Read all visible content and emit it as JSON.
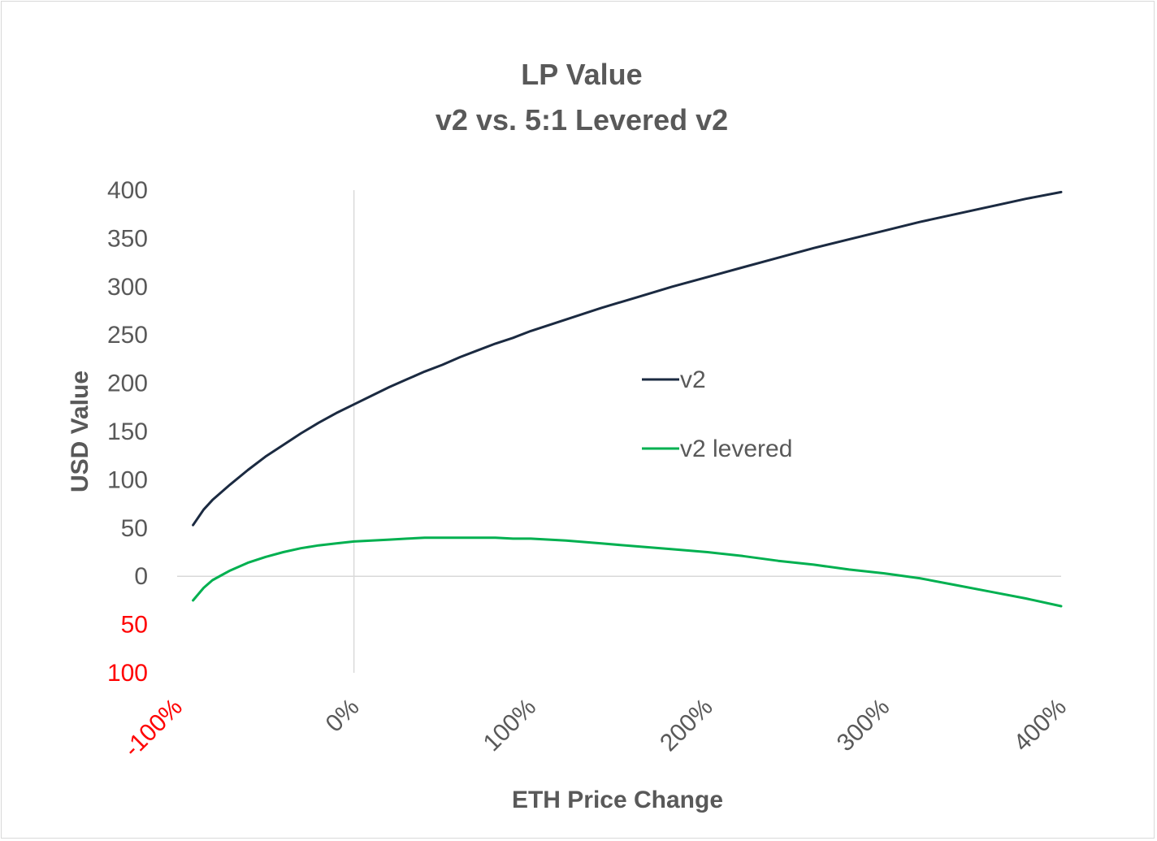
{
  "chart_data": {
    "type": "line",
    "title": [
      "LP Value",
      "v2 vs. 5:1 Levered v2"
    ],
    "xlabel": "ETH Price Change",
    "ylabel": "USD Value",
    "xlim": [
      -100,
      400
    ],
    "ylim": [
      -100,
      400
    ],
    "x_ticks": [
      {
        "value": -100,
        "label": "-100%",
        "color": "#ff0000"
      },
      {
        "value": 0,
        "label": "0%",
        "color": "#595959"
      },
      {
        "value": 100,
        "label": "100%",
        "color": "#595959"
      },
      {
        "value": 200,
        "label": "200%",
        "color": "#595959"
      },
      {
        "value": 300,
        "label": "300%",
        "color": "#595959"
      },
      {
        "value": 400,
        "label": "400%",
        "color": "#595959"
      }
    ],
    "y_ticks": [
      {
        "value": 400,
        "label": "400",
        "color": "#595959"
      },
      {
        "value": 350,
        "label": "350",
        "color": "#595959"
      },
      {
        "value": 300,
        "label": "300",
        "color": "#595959"
      },
      {
        "value": 250,
        "label": "250",
        "color": "#595959"
      },
      {
        "value": 200,
        "label": "200",
        "color": "#595959"
      },
      {
        "value": 150,
        "label": "150",
        "color": "#595959"
      },
      {
        "value": 100,
        "label": "100",
        "color": "#595959"
      },
      {
        "value": 50,
        "label": "50",
        "color": "#595959"
      },
      {
        "value": 0,
        "label": "0",
        "color": "#595959"
      },
      {
        "value": -50,
        "label": "50",
        "color": "#ff0000"
      },
      {
        "value": -100,
        "label": "100",
        "color": "#ff0000"
      }
    ],
    "grid": false,
    "legend_position": "center-right",
    "series": [
      {
        "name": "v2",
        "color": "#1b2a41",
        "x": [
          -91,
          -85,
          -80,
          -75,
          -70,
          -60,
          -50,
          -40,
          -30,
          -20,
          -10,
          0,
          10,
          20,
          30,
          40,
          50,
          60,
          70,
          80,
          90,
          100,
          120,
          140,
          160,
          180,
          200,
          220,
          240,
          260,
          280,
          300,
          320,
          340,
          360,
          380,
          400
        ],
        "values": [
          53,
          69,
          79,
          87,
          95,
          110,
          124,
          136,
          148,
          159,
          169,
          178,
          187,
          196,
          204,
          212,
          219,
          227,
          234,
          241,
          247,
          254,
          266,
          278,
          289,
          300,
          310,
          320,
          330,
          340,
          349,
          358,
          367,
          375,
          383,
          391,
          398
        ]
      },
      {
        "name": "v2 levered",
        "color": "#00b050",
        "x": [
          -91,
          -85,
          -80,
          -75,
          -70,
          -60,
          -50,
          -40,
          -30,
          -20,
          -10,
          0,
          10,
          20,
          30,
          40,
          50,
          60,
          70,
          80,
          90,
          100,
          120,
          140,
          160,
          180,
          200,
          220,
          240,
          260,
          280,
          300,
          320,
          340,
          360,
          380,
          400
        ],
        "values": [
          -25,
          -12,
          -4,
          1,
          6,
          14,
          20,
          25,
          29,
          32,
          34,
          36,
          37,
          38,
          39,
          40,
          40,
          40,
          40,
          40,
          39,
          39,
          37,
          34,
          31,
          28,
          25,
          21,
          16,
          12,
          7,
          3,
          -2,
          -9,
          -16,
          -23,
          -31
        ]
      }
    ]
  }
}
